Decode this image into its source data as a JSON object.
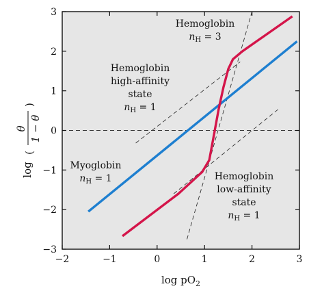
{
  "chart_data": {
    "type": "line",
    "xlabel": "log pO₂",
    "ylabel": "log (θ / (1 − θ))",
    "ylabel_parts": {
      "log": "log",
      "numerator": "θ",
      "denominator": "1 − θ"
    },
    "xlim": [
      -2,
      3
    ],
    "ylim": [
      -3,
      3
    ],
    "xticks": [
      "−2",
      "−1",
      "0",
      "1",
      "2",
      "3"
    ],
    "xtick_values": [
      -2,
      -1,
      0,
      1,
      2,
      3
    ],
    "yticks": [
      "−3",
      "−2",
      "−1",
      "0",
      "1",
      "2",
      "3"
    ],
    "ytick_values": [
      -3,
      -2,
      -1,
      0,
      1,
      2,
      3
    ],
    "grid": false,
    "background": "#e6e6e6",
    "series": [
      {
        "name": "Myoglobin",
        "color": "#1e7fd0",
        "style": "solid",
        "x": [
          -1.45,
          2.95
        ],
        "y": [
          -2.05,
          2.25
        ]
      },
      {
        "name": "Hemoglobin",
        "color": "#d4154a",
        "style": "solid",
        "x": [
          -0.73,
          0.45,
          0.95,
          1.1,
          1.2,
          1.3,
          1.4,
          1.5,
          1.6,
          1.8,
          2.85
        ],
        "y": [
          -2.67,
          -1.6,
          -1.05,
          -0.75,
          -0.1,
          0.55,
          1.1,
          1.55,
          1.8,
          2.0,
          2.88
        ]
      }
    ],
    "reference_lines": [
      {
        "label": "zero",
        "color": "#333333",
        "style": "dashed",
        "x": [
          -2,
          3
        ],
        "y": [
          0,
          0
        ]
      },
      {
        "label": "high-affinity",
        "color": "#333333",
        "style": "dashed",
        "x": [
          -0.45,
          1.75
        ],
        "y": [
          -0.32,
          1.73
        ]
      },
      {
        "label": "low-affinity",
        "color": "#333333",
        "style": "dashed",
        "x": [
          0.35,
          2.55
        ],
        "y": [
          -1.6,
          0.53
        ]
      },
      {
        "label": "nH3",
        "color": "#333333",
        "style": "dashed",
        "x": [
          0.63,
          2.0
        ],
        "y": [
          -2.75,
          3.0
        ]
      }
    ],
    "annotations": [
      {
        "id": "hb",
        "lines": [
          "Hemoglobin",
          "n_H = 3"
        ]
      },
      {
        "id": "high",
        "lines": [
          "Hemoglobin",
          "high-affinity",
          "state",
          "n_H = 1"
        ]
      },
      {
        "id": "myo",
        "lines": [
          "Myoglobin",
          "n_H = 1"
        ]
      },
      {
        "id": "low",
        "lines": [
          "Hemoglobin",
          "low-affinity",
          "state",
          "n_H = 1"
        ]
      }
    ]
  }
}
